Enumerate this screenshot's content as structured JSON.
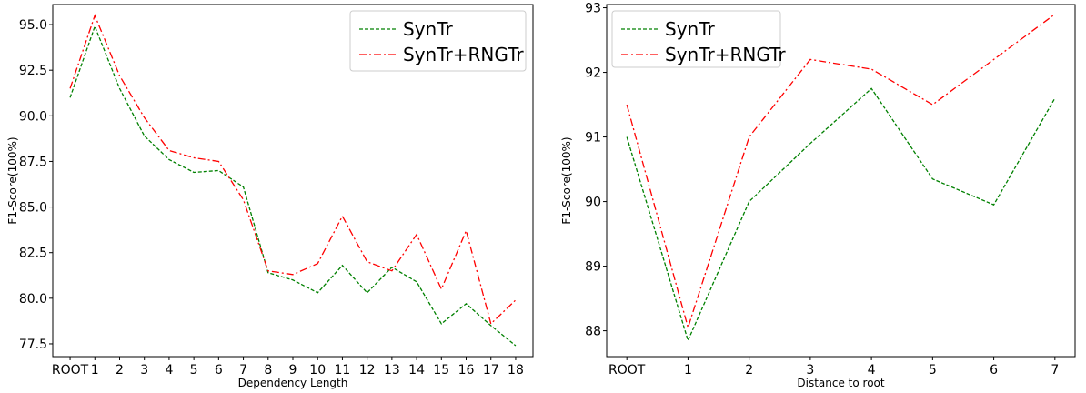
{
  "chart_data": [
    {
      "type": "line",
      "xlabel": "Dependency Length",
      "ylabel": "F1-Score(100%)",
      "categories": [
        "ROOT",
        "1",
        "2",
        "3",
        "4",
        "5",
        "6",
        "7",
        "8",
        "9",
        "10",
        "11",
        "12",
        "13",
        "14",
        "15",
        "16",
        "17",
        "18"
      ],
      "ylim": [
        76.8,
        96.1
      ],
      "yticks": [
        "77.5",
        "80.0",
        "82.5",
        "85.0",
        "87.5",
        "90.0",
        "92.5",
        "95.0"
      ],
      "grid": false,
      "legend_position": "top-right",
      "series": [
        {
          "name": "SynTr",
          "color": "#008000",
          "dash": "dashed",
          "values": [
            91.0,
            94.9,
            91.5,
            88.9,
            87.6,
            86.9,
            87.0,
            86.1,
            81.4,
            81.0,
            80.3,
            81.8,
            80.3,
            81.7,
            80.9,
            78.6,
            79.7,
            78.5,
            77.4
          ]
        },
        {
          "name": "SynTr+RNGTr",
          "color": "#ff0000",
          "dash": "dashdot",
          "values": [
            91.5,
            95.5,
            92.2,
            89.9,
            88.1,
            87.7,
            87.5,
            85.4,
            81.5,
            81.3,
            81.9,
            84.5,
            82.0,
            81.5,
            83.5,
            80.5,
            83.7,
            78.6,
            79.9
          ]
        }
      ]
    },
    {
      "type": "line",
      "xlabel": "Distance to root",
      "ylabel": "F1-Score(100%)",
      "categories": [
        "ROOT",
        "1",
        "2",
        "3",
        "4",
        "5",
        "6",
        "7"
      ],
      "ylim": [
        87.6,
        93.05
      ],
      "yticks": [
        "88",
        "89",
        "90",
        "91",
        "92",
        "93"
      ],
      "grid": false,
      "legend_position": "top-left",
      "series": [
        {
          "name": "SynTr",
          "color": "#008000",
          "dash": "dashed",
          "values": [
            91.0,
            87.85,
            90.0,
            90.9,
            91.75,
            90.35,
            89.95,
            91.6
          ]
        },
        {
          "name": "SynTr+RNGTr",
          "color": "#ff0000",
          "dash": "dashdot",
          "values": [
            91.5,
            88.05,
            91.0,
            92.2,
            92.05,
            91.5,
            92.2,
            92.9
          ]
        }
      ]
    }
  ]
}
